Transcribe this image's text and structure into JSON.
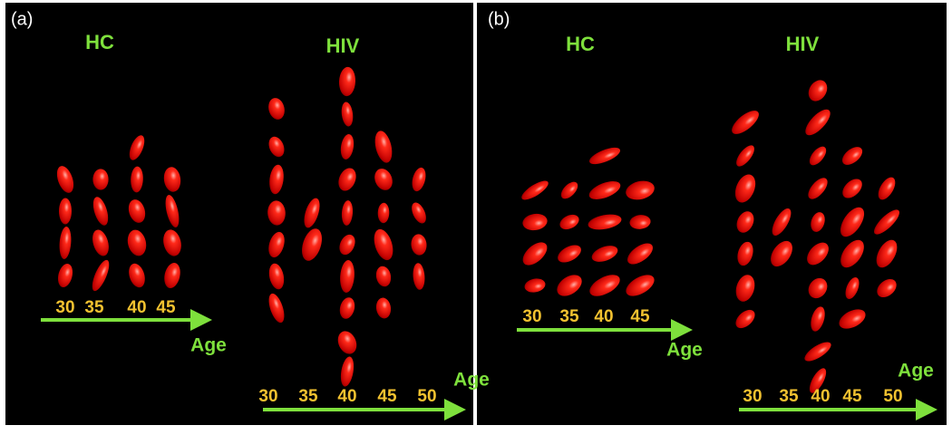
{
  "panels": [
    {
      "label": "(a)",
      "groups": [
        {
          "title": "HC",
          "ages": [
            "30",
            "35",
            "40",
            "45"
          ],
          "axis_label": "Age"
        },
        {
          "title": "HIV",
          "ages": [
            "30",
            "35",
            "40",
            "45",
            "50"
          ],
          "axis_label": "Age"
        }
      ]
    },
    {
      "label": "(b)",
      "groups": [
        {
          "title": "HC",
          "ages": [
            "30",
            "35",
            "40",
            "45"
          ],
          "axis_label": "Age"
        },
        {
          "title": "HIV",
          "ages": [
            "30",
            "35",
            "40",
            "45",
            "50"
          ],
          "axis_label": "Age"
        }
      ]
    }
  ]
}
